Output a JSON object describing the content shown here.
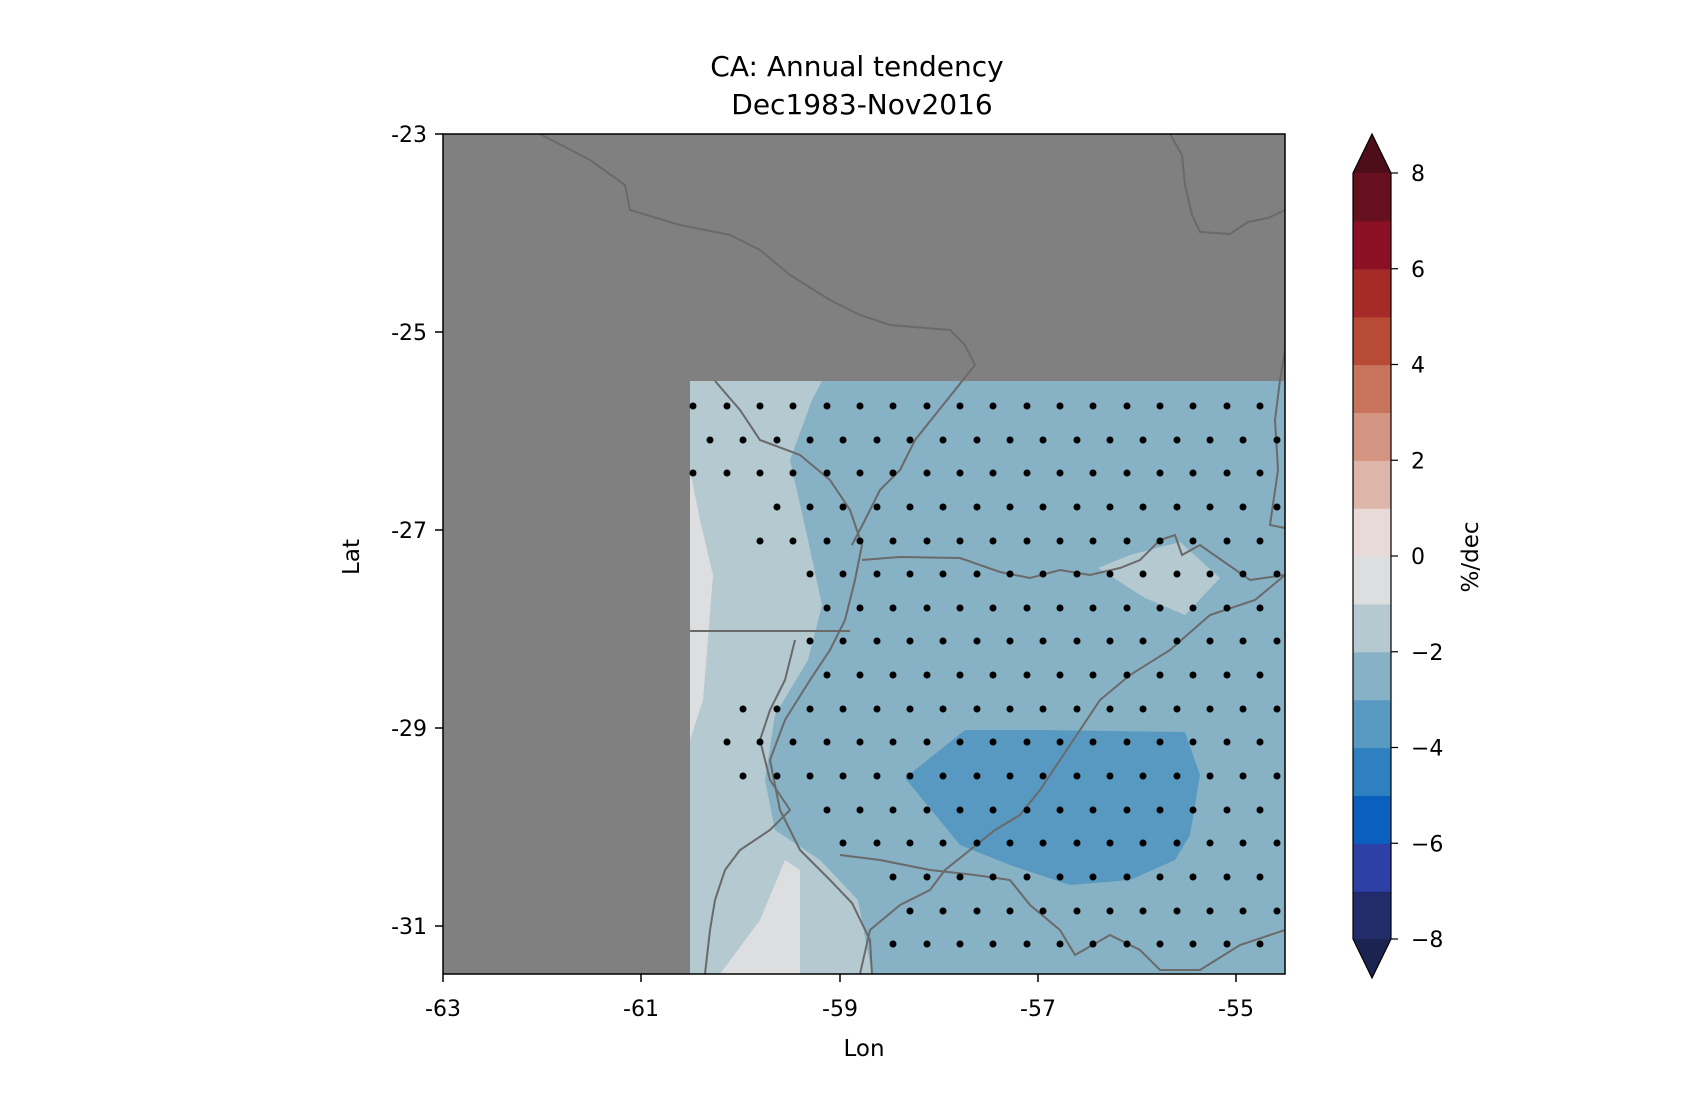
{
  "title_line1": "CA: Annual tendency",
  "title_line2": "Dec1983-Nov2016",
  "xlabel": "Lon",
  "ylabel": "Lat",
  "colorbar_label": "%/dec",
  "x_ticks": [
    "-63",
    "-61",
    "-59",
    "-57",
    "-55"
  ],
  "y_ticks": [
    "-23",
    "-25",
    "-27",
    "-29",
    "-31"
  ],
  "colorbar_ticks": [
    "8",
    "6",
    "4",
    "2",
    "0",
    "−2",
    "−4",
    "−6",
    "−8"
  ],
  "colors": {
    "mask_land": "#808080",
    "border": "#6a6a6a",
    "stipple": "#000000",
    "colorbar_levels": [
      "#222c6b",
      "#2c40a6",
      "#0b5fbf",
      "#2f80c0",
      "#5899c2",
      "#87b1c4",
      "#b4c9d0",
      "#dcdedf",
      "#e8dad8",
      "#deb5a9",
      "#d39481",
      "#c8735b",
      "#b84b36",
      "#a62a28",
      "#8b1024",
      "#67101f"
    ],
    "colorbar_under": "#1b2451",
    "colorbar_over": "#4d0e1a"
  },
  "chart_data": {
    "type": "heatmap",
    "title": "CA: Annual tendency\nDec1983-Nov2016",
    "xlabel": "Lon",
    "ylabel": "Lat",
    "xlim": [
      -63,
      -54.5
    ],
    "ylim": [
      -31.5,
      -23
    ],
    "colorbar": {
      "label": "%/dec",
      "range": [
        -8,
        8
      ],
      "step": 1,
      "extend": "both"
    },
    "data_region": {
      "lon": [
        -60.5,
        -54.5
      ],
      "lat": [
        -31.5,
        -25.5
      ]
    },
    "fields": [
      {
        "value_range": [
          -3,
          -2
        ],
        "description": "broad field covering most of data region"
      },
      {
        "value_range": [
          -2,
          -1
        ],
        "description": "western strip and south-central tongue"
      },
      {
        "value_range": [
          -1,
          0
        ],
        "description": "westernmost edge and small patch near -55.7,-27.4"
      },
      {
        "value_range": [
          -4,
          -3
        ],
        "description": "core near -57.5 to -55.5, -29.1 to -30.5"
      }
    ],
    "stippling": "significant trend points at 0.33 degree spacing"
  }
}
